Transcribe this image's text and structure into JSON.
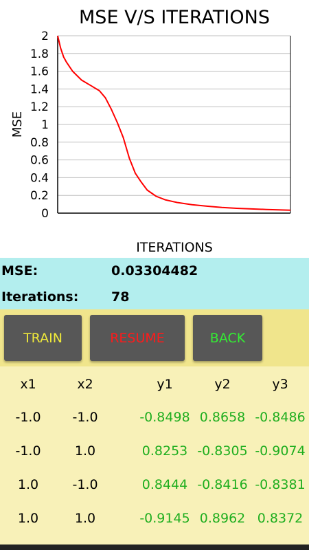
{
  "chart": {
    "title": "MSE V/S ITERATIONS",
    "ylabel": "MSE",
    "xlabel": "ITERATIONS"
  },
  "chart_data": {
    "type": "line",
    "title": "MSE V/S ITERATIONS",
    "xlabel": "ITERATIONS",
    "ylabel": "MSE",
    "ylim": [
      0,
      2
    ],
    "xlim": [
      0,
      78
    ],
    "y_ticks": [
      "0",
      "0.2",
      "0.4",
      "0.6",
      "0.8",
      "1",
      "1.2",
      "1.4",
      "1.6",
      "1.8",
      "2"
    ],
    "grid": true,
    "series": [
      {
        "color": "#ff0000",
        "x": [
          0,
          1,
          2,
          3,
          5,
          8,
          11,
          14,
          16,
          18,
          20,
          22,
          24,
          26,
          28,
          30,
          33,
          36,
          40,
          45,
          50,
          55,
          60,
          65,
          70,
          75,
          78
        ],
        "y": [
          2.0,
          1.86,
          1.76,
          1.7,
          1.6,
          1.5,
          1.44,
          1.38,
          1.3,
          1.17,
          1.02,
          0.85,
          0.62,
          0.45,
          0.35,
          0.26,
          0.19,
          0.15,
          0.12,
          0.095,
          0.078,
          0.064,
          0.054,
          0.047,
          0.041,
          0.036,
          0.033
        ]
      }
    ]
  },
  "stats": {
    "mse_label": "MSE:",
    "mse_value": "0.03304482",
    "iterations_label": "Iterations:",
    "iterations_value": "78"
  },
  "buttons": {
    "train": {
      "label": "TRAIN",
      "color": "#f0ea3a"
    },
    "resume": {
      "label": "RESUME",
      "color": "#ff1a1a"
    },
    "back": {
      "label": "BACK",
      "color": "#33ee33"
    }
  },
  "table": {
    "headers": [
      "x1",
      "x2",
      "y1",
      "y2",
      "y3"
    ],
    "rows": [
      [
        "-1.0",
        "-1.0",
        "-0.8498",
        "0.8658",
        "-0.8486"
      ],
      [
        "-1.0",
        "1.0",
        "0.8253",
        "-0.8305",
        "-0.9074"
      ],
      [
        "1.0",
        "-1.0",
        "0.8444",
        "-0.8416",
        "-0.8381"
      ],
      [
        "1.0",
        "1.0",
        "-0.9145",
        "0.8962",
        "0.8372"
      ]
    ]
  }
}
